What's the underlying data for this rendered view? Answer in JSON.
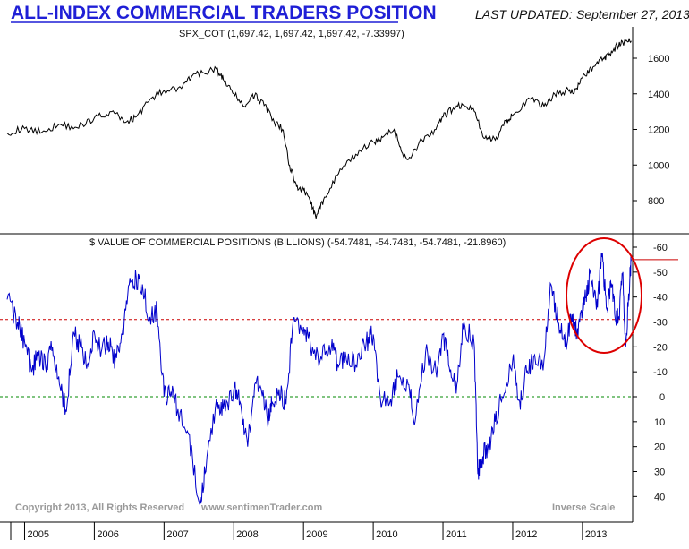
{
  "header": {
    "title": "ALL-INDEX COMMERCIAL TRADERS POSITION",
    "updated_label": "LAST UPDATED:",
    "updated_date": "September 27, 2013"
  },
  "footer": {
    "copyright": "Copyright 2013, All Rights Reserved",
    "website": "www.sentimenTrader.com",
    "scale_note": "Inverse Scale"
  },
  "colors": {
    "title": "#1f1fd6",
    "price_line": "#000000",
    "commercial_line": "#0000cc",
    "red_reference": "#cc0000",
    "green_reference": "#008800",
    "highlight_circle": "#dd0000"
  },
  "chart_data": [
    {
      "type": "line",
      "label": "SPX_COT (1,697.42, 1,697.42, 1,697.42, -7.33997)",
      "y_scale": "linear",
      "ylim": [
        620,
        1730
      ],
      "y_ticks": [
        800,
        1000,
        1200,
        1400,
        1600
      ],
      "grid": false,
      "x": [
        2004.75,
        2005.0,
        2005.25,
        2005.5,
        2005.75,
        2006.0,
        2006.25,
        2006.45,
        2006.6,
        2006.8,
        2007.0,
        2007.25,
        2007.4,
        2007.55,
        2007.75,
        2007.85,
        2008.0,
        2008.15,
        2008.3,
        2008.45,
        2008.55,
        2008.7,
        2008.8,
        2008.9,
        2009.0,
        2009.1,
        2009.18,
        2009.3,
        2009.5,
        2009.75,
        2010.0,
        2010.15,
        2010.3,
        2010.4,
        2010.5,
        2010.7,
        2010.9,
        2011.0,
        2011.15,
        2011.3,
        2011.45,
        2011.6,
        2011.75,
        2011.9,
        2012.0,
        2012.25,
        2012.45,
        2012.6,
        2012.8,
        2012.88,
        2013.0,
        2013.15,
        2013.3,
        2013.38,
        2013.5,
        2013.6,
        2013.7
      ],
      "series": [
        {
          "values": [
            1180,
            1205,
            1185,
            1230,
            1210,
            1265,
            1300,
            1240,
            1270,
            1370,
            1420,
            1430,
            1500,
            1520,
            1540,
            1480,
            1400,
            1330,
            1390,
            1340,
            1250,
            1200,
            1000,
            880,
            860,
            800,
            700,
            820,
            950,
            1060,
            1130,
            1160,
            1200,
            1080,
            1030,
            1140,
            1200,
            1270,
            1320,
            1340,
            1300,
            1150,
            1140,
            1250,
            1280,
            1370,
            1330,
            1400,
            1420,
            1400,
            1490,
            1550,
            1600,
            1620,
            1670,
            1690,
            1697
          ]
        }
      ]
    },
    {
      "type": "line",
      "label": "$ VALUE OF COMMERCIAL POSITIONS (BILLIONS) (-54.7481, -54.7481, -54.7481, -21.8960)",
      "y_scale": "inverse",
      "ylim": [
        45,
        -65
      ],
      "y_ticks": [
        -60,
        -50,
        -40,
        -30,
        -20,
        -10,
        0,
        10,
        20,
        30,
        40
      ],
      "reference_lines": [
        {
          "value": -31,
          "color": "red",
          "style": "dashed"
        },
        {
          "value": 0,
          "color": "green",
          "style": "dashed"
        },
        {
          "value": -55,
          "color": "red",
          "style": "solid"
        }
      ],
      "x_ticks": [
        "2005",
        "2006",
        "2007",
        "2008",
        "2009",
        "2010",
        "2011",
        "2012",
        "2013"
      ],
      "grid": false,
      "x": [
        2004.75,
        2004.9,
        2005.0,
        2005.1,
        2005.2,
        2005.3,
        2005.4,
        2005.5,
        2005.6,
        2005.7,
        2005.8,
        2005.9,
        2006.0,
        2006.1,
        2006.2,
        2006.3,
        2006.4,
        2006.5,
        2006.6,
        2006.7,
        2006.8,
        2006.9,
        2007.0,
        2007.1,
        2007.2,
        2007.35,
        2007.5,
        2007.6,
        2007.75,
        2007.85,
        2008.0,
        2008.1,
        2008.2,
        2008.3,
        2008.4,
        2008.5,
        2008.55,
        2008.65,
        2008.75,
        2008.85,
        2009.0,
        2009.1,
        2009.25,
        2009.4,
        2009.5,
        2009.6,
        2009.75,
        2009.9,
        2010.0,
        2010.1,
        2010.25,
        2010.35,
        2010.5,
        2010.6,
        2010.75,
        2010.9,
        2011.0,
        2011.1,
        2011.2,
        2011.3,
        2011.45,
        2011.5,
        2011.55,
        2011.65,
        2011.75,
        2011.85,
        2012.0,
        2012.1,
        2012.2,
        2012.3,
        2012.45,
        2012.55,
        2012.65,
        2012.75,
        2012.85,
        2012.92,
        2013.0,
        2013.05,
        2013.12,
        2013.2,
        2013.28,
        2013.35,
        2013.42,
        2013.48,
        2013.52,
        2013.58,
        2013.62,
        2013.68,
        2013.7
      ],
      "series": [
        {
          "values": [
            -39,
            -30,
            -22,
            -10,
            -17,
            -12,
            -20,
            -5,
            6,
            -26,
            -20,
            -13,
            -26,
            -18,
            -22,
            -15,
            -25,
            -45,
            -48,
            -42,
            -32,
            -35,
            0,
            -2,
            5,
            15,
            42,
            30,
            1,
            5,
            -3,
            3,
            20,
            -5,
            -2,
            9,
            2,
            -3,
            3,
            -30,
            -28,
            -20,
            -16,
            -20,
            -12,
            -18,
            -13,
            -22,
            -25,
            0,
            1,
            -8,
            -5,
            10,
            -18,
            -10,
            -25,
            -10,
            -5,
            -30,
            -20,
            31,
            25,
            20,
            10,
            0,
            -15,
            2,
            -10,
            -16,
            -15,
            -45,
            -30,
            -20,
            -33,
            -25,
            -35,
            -40,
            -50,
            -35,
            -56,
            -35,
            -45,
            -30,
            -32,
            -50,
            -20,
            -48,
            -55
          ]
        }
      ]
    }
  ]
}
